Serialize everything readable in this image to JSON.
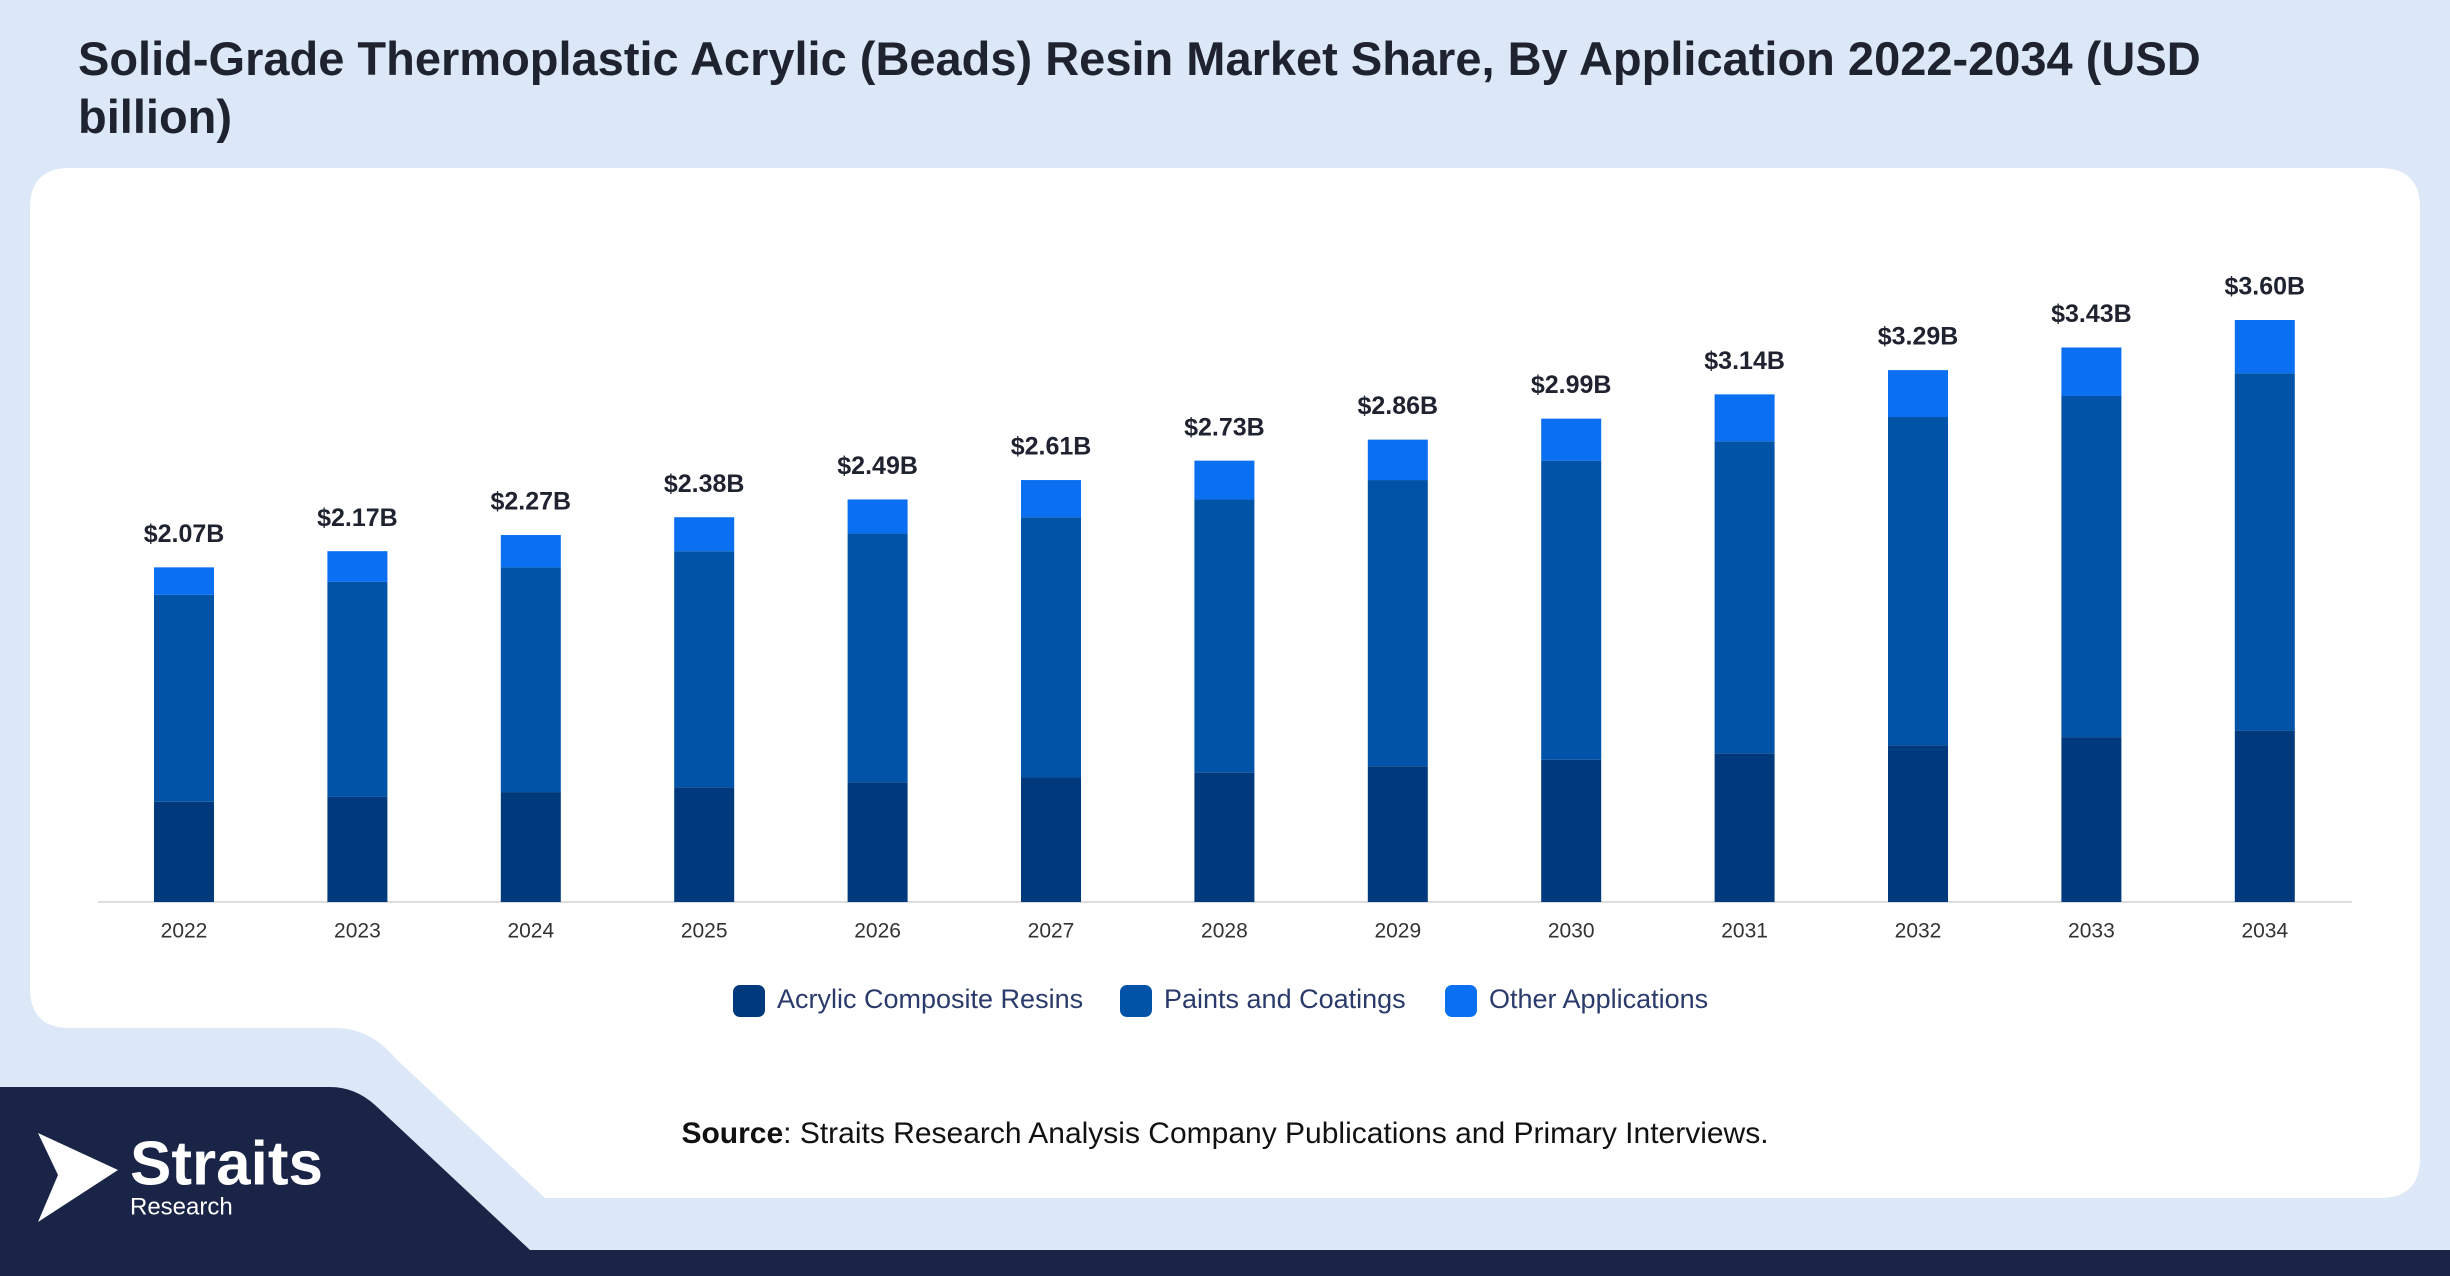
{
  "chart_data": {
    "type": "bar",
    "stacked": true,
    "title": "Solid-Grade Thermoplastic Acrylic (Beads) Resin Market Share, By Application 2022-2034 (USD billion)",
    "categories": [
      "2022",
      "2023",
      "2024",
      "2025",
      "2026",
      "2027",
      "2028",
      "2029",
      "2030",
      "2031",
      "2032",
      "2033",
      "2034"
    ],
    "series": [
      {
        "name": "Acrylic Composite Resins",
        "color": "#003a7d",
        "values": [
          0.62,
          0.65,
          0.68,
          0.71,
          0.74,
          0.77,
          0.8,
          0.84,
          0.88,
          0.92,
          0.97,
          1.02,
          1.06
        ]
      },
      {
        "name": "Paints and Coatings",
        "color": "#0053a6",
        "values": [
          1.28,
          1.33,
          1.39,
          1.46,
          1.54,
          1.61,
          1.69,
          1.77,
          1.85,
          1.93,
          2.03,
          2.11,
          2.21
        ]
      },
      {
        "name": "Other Applications",
        "color": "#0a6ff0",
        "values": [
          0.17,
          0.19,
          0.2,
          0.21,
          0.21,
          0.23,
          0.24,
          0.25,
          0.26,
          0.29,
          0.29,
          0.3,
          0.33
        ]
      }
    ],
    "totals": {
      "values": [
        2.07,
        2.17,
        2.27,
        2.38,
        2.49,
        2.61,
        2.73,
        2.86,
        2.99,
        3.14,
        3.29,
        3.43,
        3.6
      ],
      "value_labels": [
        "$2.07B",
        "$2.17B",
        "$2.27B",
        "$2.38B",
        "$2.49B",
        "$2.61B",
        "$2.73B",
        "$2.86B",
        "$2.99B",
        "$3.14B",
        "$3.29B",
        "$3.43B",
        "$3.60B"
      ]
    },
    "legend": "bottom"
  },
  "source": {
    "label": "Source",
    "text": ": Straits Research Analysis Company Publications and Primary Interviews."
  },
  "logo": {
    "name": "Straits",
    "sub": "Research"
  }
}
